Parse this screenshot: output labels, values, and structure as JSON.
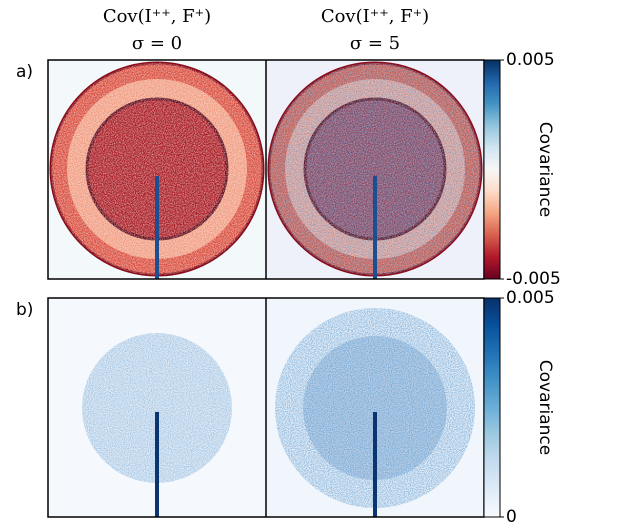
{
  "chart_data": [
    {
      "type": "heatmap",
      "panel_label": "a)",
      "columns": [
        {
          "title": "Cov(I⁺⁺, F⁺)",
          "subtitle": "σ = 0"
        },
        {
          "title": "Cov(I⁺⁺, F⁺)",
          "subtitle": "σ = 5"
        }
      ],
      "colorbar": {
        "label": "Covariance",
        "clim": [
          -0.005,
          0.005
        ],
        "cticks": [
          -0.005,
          0.005
        ],
        "colormap": "RdBu"
      }
    },
    {
      "type": "heatmap",
      "panel_label": "b)",
      "colorbar": {
        "label": "Covariance",
        "clim": [
          0,
          0.005
        ],
        "cticks": [
          0,
          0.005
        ],
        "colormap": "Blues"
      }
    }
  ]
}
